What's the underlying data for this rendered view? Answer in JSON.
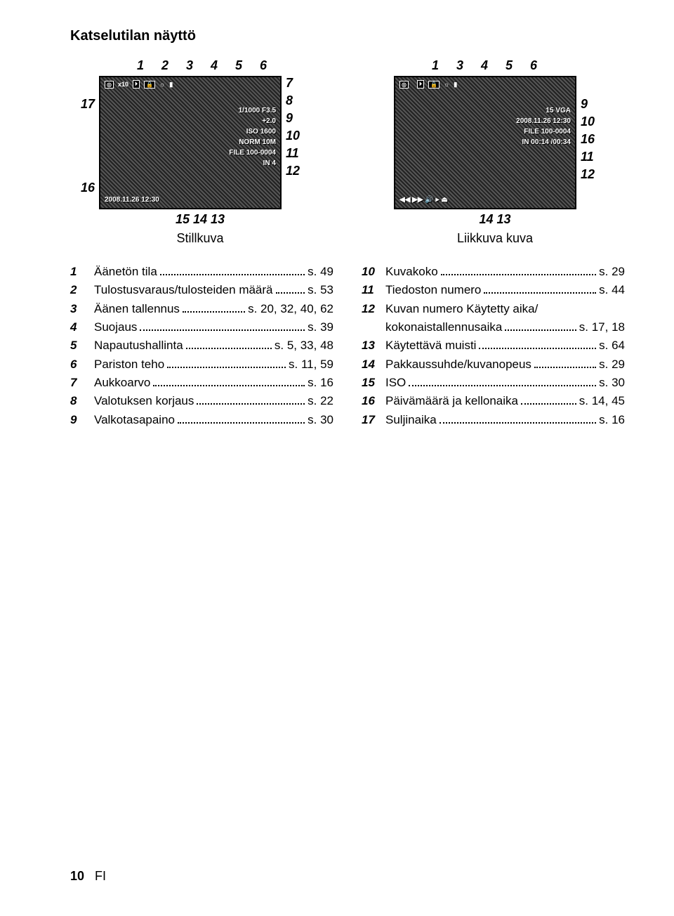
{
  "title": "Katselutilan näyttö",
  "diagrams": {
    "still": {
      "top_callouts": "1  2  3  4    5 6",
      "left": [
        "17",
        "16"
      ],
      "right": [
        "7",
        "8",
        "9",
        "10",
        "11",
        "12"
      ],
      "bottom": "15 14     13",
      "caption": "Stillkuva",
      "topbar": [
        "◎",
        "x10",
        "⏵",
        "🔒",
        "☼",
        "▮"
      ],
      "info": [
        "1/1000 F3.5",
        "+2.0",
        "ISO 1600",
        "NORM 10M",
        "FILE 100-0004",
        "IN  4"
      ],
      "bottomline": "2008.11.26  12:30"
    },
    "movie": {
      "top_callouts": "1       3  4    5 6",
      "right": [
        "9",
        "10",
        "16",
        "11",
        "12"
      ],
      "bottom": "14   13",
      "caption": "Liikkuva kuva",
      "topbar": [
        "◎",
        "",
        "⏵",
        "🔒",
        "☼",
        "▮"
      ],
      "info": [
        "15  VGA",
        "2008.11.26  12:30",
        "FILE 100-0004",
        "IN 00:14 /00:34"
      ],
      "bottomline": "◀◀                       ▶▶   🔊 ▸ ⏏"
    }
  },
  "legend_left": [
    {
      "n": "1",
      "label": "Äänetön tila",
      "page": "s. 49"
    },
    {
      "n": "2",
      "label": "Tulostusvaraus/tulosteiden määrä",
      "page": "s. 53"
    },
    {
      "n": "3",
      "label": "Äänen tallennus",
      "page": "s. 20, 32, 40, 62"
    },
    {
      "n": "4",
      "label": "Suojaus",
      "page": "s. 39"
    },
    {
      "n": "5",
      "label": "Napautushallinta",
      "page": "s. 5, 33, 48"
    },
    {
      "n": "6",
      "label": "Pariston teho",
      "page": "s. 11, 59"
    },
    {
      "n": "7",
      "label": "Aukkoarvo",
      "page": "s. 16"
    },
    {
      "n": "8",
      "label": "Valotuksen korjaus",
      "page": "s. 22"
    },
    {
      "n": "9",
      "label": "Valkotasapaino",
      "page": "s. 30"
    }
  ],
  "legend_right": [
    {
      "n": "10",
      "label": "Kuvakoko",
      "page": "s. 29"
    },
    {
      "n": "11",
      "label": "Tiedoston numero",
      "page": "s. 44"
    },
    {
      "n": "12",
      "label": "Kuvan numero Käytetty aika/",
      "page": ""
    },
    {
      "n": "",
      "label": "kokonaistallennusaika",
      "page": "s. 17, 18",
      "cont": true
    },
    {
      "n": "13",
      "label": "Käytettävä muisti",
      "page": "s. 64"
    },
    {
      "n": "14",
      "label": "Pakkaussuhde/kuvanopeus",
      "page": "s. 29"
    },
    {
      "n": "15",
      "label": "ISO",
      "page": "s. 30"
    },
    {
      "n": "16",
      "label": "Päivämäärä ja kellonaika",
      "page": "s. 14, 45"
    },
    {
      "n": "17",
      "label": "Suljinaika",
      "page": "s. 16"
    }
  ],
  "footer": {
    "page_num": "10",
    "lang": "FI"
  }
}
